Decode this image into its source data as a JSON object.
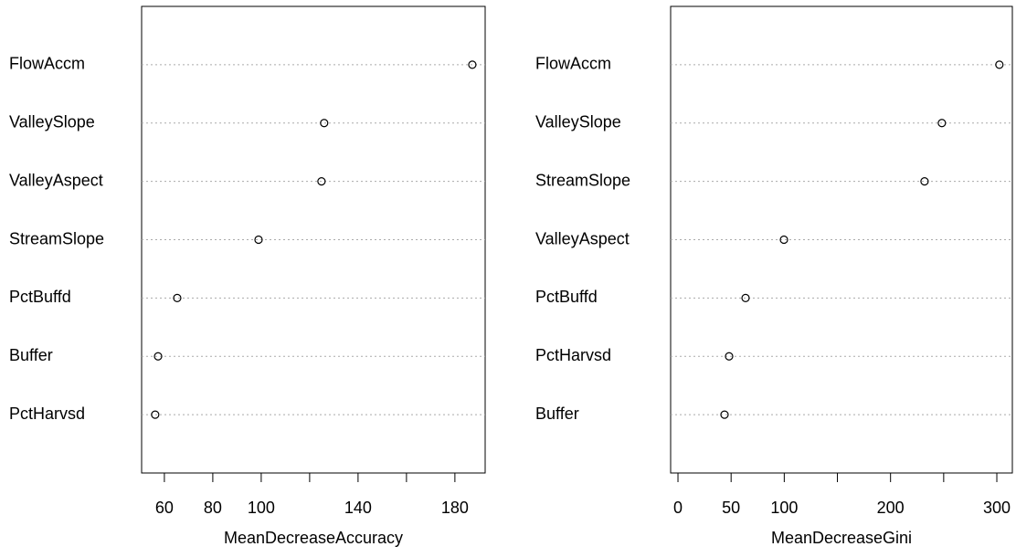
{
  "chart_data": [
    {
      "type": "dot",
      "xlabel": "MeanDecreaseAccuracy",
      "categories": [
        "FlowAccm",
        "ValleySlope",
        "ValleyAspect",
        "StreamSlope",
        "PctBuffd",
        "Buffer",
        "PctHarvsd"
      ],
      "values": [
        187.2,
        126.0,
        124.9,
        98.9,
        65.3,
        57.4,
        56.2
      ],
      "xlim": [
        50.6,
        192.5
      ],
      "xticks": [
        60,
        80,
        100,
        {
          "value": 120,
          "label": null
        },
        140,
        {
          "value": 160,
          "label": null
        },
        180
      ],
      "color": "#000000",
      "grid": true
    },
    {
      "type": "dot",
      "xlabel": "MeanDecreaseGini",
      "categories": [
        "FlowAccm",
        "ValleySlope",
        "StreamSlope",
        "ValleyAspect",
        "PctBuffd",
        "PctHarvsd",
        "Buffer"
      ],
      "values": [
        302.4,
        248.3,
        232.0,
        99.7,
        63.6,
        48.1,
        43.8
      ],
      "xlim": [
        -6.9,
        314.6
      ],
      "xticks": [
        0,
        50,
        100,
        {
          "value": 150,
          "label": null
        },
        200,
        {
          "value": 250,
          "label": null
        },
        300
      ],
      "color": "#000000",
      "grid": true
    }
  ]
}
